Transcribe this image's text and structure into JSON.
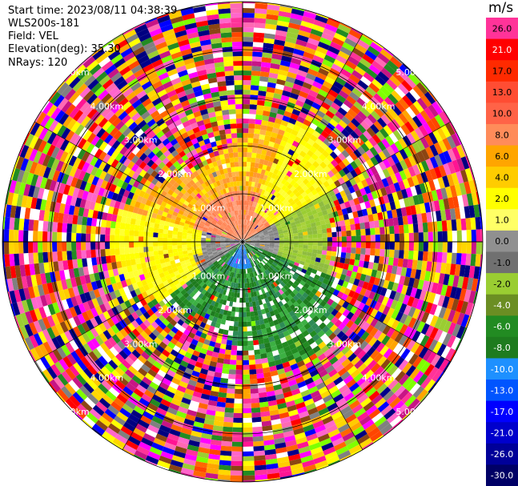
{
  "info": {
    "start_time": "Start time: 2023/08/11 04:38:39",
    "instrument": "WLS200s-181",
    "field": "Field: VEL",
    "elevation": "Elevation(deg): 35.30",
    "nrays": "NRays: 120"
  },
  "colorbar": {
    "unit": "m/s",
    "bins": [
      {
        "label": "26.0",
        "color": "#ff3399"
      },
      {
        "label": "21.0",
        "color": "#ff0000"
      },
      {
        "label": "17.0",
        "color": "#ff2a00"
      },
      {
        "label": "13.0",
        "color": "#ff4d33"
      },
      {
        "label": "10.0",
        "color": "#ff6347"
      },
      {
        "label": "8.0",
        "color": "#ff8c5a"
      },
      {
        "label": "6.0",
        "color": "#ffa500"
      },
      {
        "label": "4.0",
        "color": "#ffcc00"
      },
      {
        "label": "2.0",
        "color": "#ffff00"
      },
      {
        "label": "1.0",
        "color": "#ffff66"
      },
      {
        "label": "0.0",
        "color": "#909090"
      },
      {
        "label": "-1.0",
        "color": "#707070"
      },
      {
        "label": "-2.0",
        "color": "#9acd32"
      },
      {
        "label": "-4.0",
        "color": "#6b8e23"
      },
      {
        "label": "-6.0",
        "color": "#228b22"
      },
      {
        "label": "-8.0",
        "color": "#1e7b1e"
      },
      {
        "label": "-10.0",
        "color": "#1e90ff"
      },
      {
        "label": "-13.0",
        "color": "#0055ff"
      },
      {
        "label": "-17.0",
        "color": "#0000ff"
      },
      {
        "label": "-21.0",
        "color": "#0000cc"
      },
      {
        "label": "-26.0",
        "color": "#000099"
      },
      {
        "label": "-30.0",
        "color": "#000066"
      }
    ]
  },
  "range_rings": {
    "labels": [
      "1.00km",
      "2.00km",
      "3.00km",
      "4.00km",
      "5.00km"
    ]
  },
  "palette": {
    "noise": [
      "#ff3399",
      "#ff1493",
      "#ff00ff",
      "#c71585",
      "#ff0000",
      "#ff6600",
      "#ffa500",
      "#ffff00",
      "#ff69b4",
      "#8b4513",
      "#0000ff",
      "#000080",
      "#228b22",
      "#9acd32",
      "#808080",
      "#ffffff",
      "#ff4500",
      "#ffd700",
      "#7fff00",
      "#00008b",
      "#ff66cc",
      "#ffcc00"
    ],
    "ne": [
      "#ffa500",
      "#ffcc00",
      "#ffb347",
      "#ff9933"
    ],
    "core": [
      "#ff8c5a",
      "#ff7f50",
      "#ffa07a"
    ],
    "yellow": [
      "#ffff00",
      "#ffff33",
      "#ffee00"
    ],
    "green": [
      "#228b22",
      "#2e8b57",
      "#3cb043",
      "#1e7b1e"
    ],
    "lightgreen": [
      "#9acd32",
      "#8fbc3f",
      "#a9d23a"
    ],
    "gray": [
      "#909090",
      "#a0a0a0",
      "#808080"
    ],
    "blue": [
      "#1e90ff",
      "#1c86ee",
      "#4169e1"
    ]
  }
}
